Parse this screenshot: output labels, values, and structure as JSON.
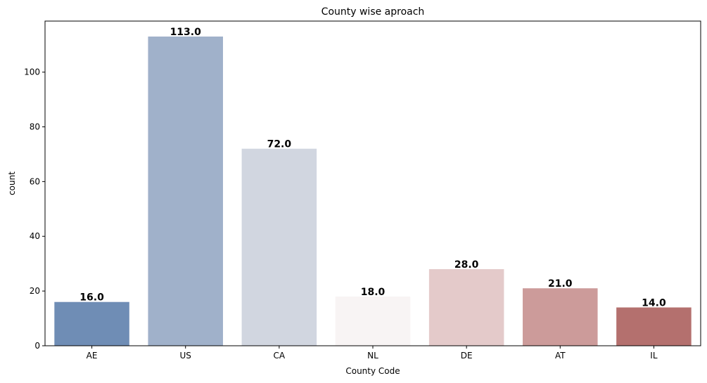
{
  "chart_data": {
    "type": "bar",
    "title": "County wise aproach",
    "xlabel": "County Code",
    "ylabel": "count",
    "categories": [
      "AE",
      "US",
      "CA",
      "NL",
      "DE",
      "AT",
      "IL"
    ],
    "values": [
      16,
      113,
      72,
      18,
      28,
      21,
      14
    ],
    "data_labels": [
      "16.0",
      "113.0",
      "72.0",
      "18.0",
      "28.0",
      "21.0",
      "14.0"
    ],
    "colors": [
      "#6f8db5",
      "#a0b1ca",
      "#d1d6e0",
      "#f8f4f4",
      "#e4caca",
      "#cc9b9a",
      "#b4706e"
    ],
    "ylim": [
      0,
      118.65
    ],
    "yticks": [
      0,
      20,
      40,
      60,
      80,
      100
    ],
    "grid": false,
    "legend": "none"
  }
}
